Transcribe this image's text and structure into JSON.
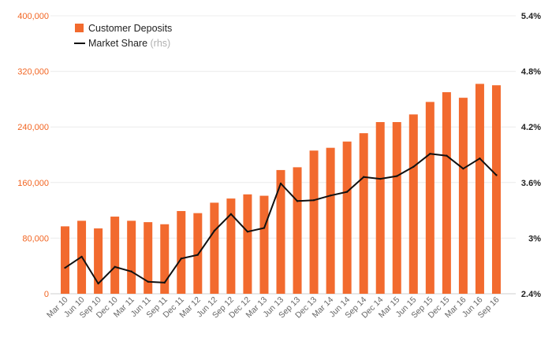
{
  "chart_data": {
    "type": "bar",
    "title": "",
    "xlabel": "",
    "ylabel": "",
    "categories": [
      "Mar 10",
      "Jun 10",
      "Sep 10",
      "Dec 10",
      "Mar 11",
      "Jun 11",
      "Sep 11",
      "Dec 11",
      "Mar 12",
      "Jun 12",
      "Sep 12",
      "Dec 12",
      "Mar 13",
      "Jun 13",
      "Sep 13",
      "Dec 13",
      "Mar 14",
      "Jun 14",
      "Sep 14",
      "Dec 14",
      "Mar 15",
      "Jun 15",
      "Sep 15",
      "Dec 15",
      "Mar 16",
      "Jun 16",
      "Sep 16"
    ],
    "series": [
      {
        "name": "Customer Deposits",
        "type": "bar",
        "axis": "left",
        "color": "#f26a2e",
        "values": [
          97000,
          105000,
          94000,
          111000,
          105000,
          103000,
          100000,
          119000,
          116000,
          131000,
          137000,
          143000,
          141000,
          178000,
          182000,
          206000,
          210000,
          219000,
          231000,
          247000,
          247000,
          258000,
          276000,
          290000,
          282000,
          302000,
          300000
        ]
      },
      {
        "name": "Market Share",
        "name_note": "(rhs)",
        "type": "line",
        "axis": "right",
        "color": "#111111",
        "values": [
          2.68,
          2.8,
          2.51,
          2.69,
          2.64,
          2.53,
          2.52,
          2.78,
          2.82,
          3.08,
          3.26,
          3.07,
          3.11,
          3.59,
          3.4,
          3.41,
          3.46,
          3.5,
          3.66,
          3.64,
          3.67,
          3.77,
          3.91,
          3.89,
          3.75,
          3.86,
          3.68
        ]
      }
    ],
    "y_left": {
      "lim": [
        0,
        400000
      ],
      "ticks": [
        0,
        80000,
        160000,
        240000,
        320000,
        400000
      ],
      "tick_labels": [
        "0",
        "80,000",
        "160,000",
        "240,000",
        "320,000",
        "400,000"
      ],
      "color": "#f26522"
    },
    "y_right": {
      "lim": [
        2.4,
        5.4
      ],
      "ticks": [
        2.4,
        3.0,
        3.6,
        4.2,
        4.8,
        5.4
      ],
      "tick_labels": [
        "2.4%",
        "3%",
        "3.6%",
        "4.2%",
        "4.8%",
        "5.4%"
      ],
      "color": "#222222"
    },
    "grid": true,
    "legend": {
      "placement": "top-left"
    }
  }
}
